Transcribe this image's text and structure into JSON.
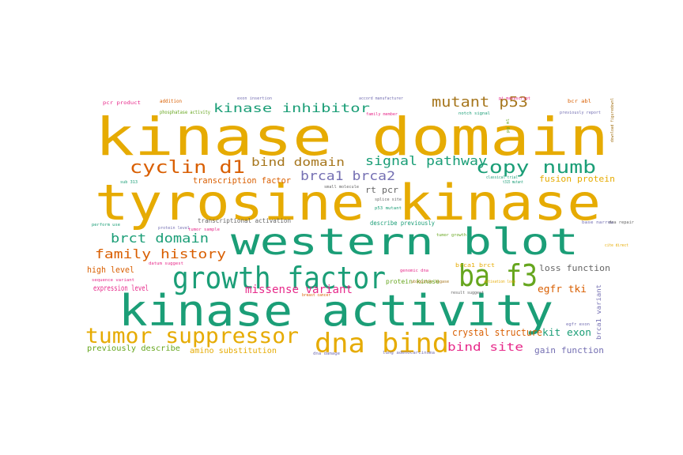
{
  "palette": {
    "orange": "#e6ab02",
    "teal": "#1b9e77",
    "rust": "#d95f02",
    "purple": "#7570b3",
    "pink": "#e7298a",
    "green": "#66a61e",
    "brown": "#a6761d",
    "gray": "#666666"
  },
  "words": [
    {
      "text": "kinase domain",
      "color": "orange"
    },
    {
      "text": "tyrosine kinase",
      "color": "orange"
    },
    {
      "text": "western blot",
      "color": "teal"
    },
    {
      "text": "kinase activity",
      "color": "teal"
    },
    {
      "text": "growth factor",
      "color": "teal"
    },
    {
      "text": "ba f3",
      "color": "green"
    },
    {
      "text": "dna bind",
      "color": "orange"
    },
    {
      "text": "tumor suppressor",
      "color": "orange"
    },
    {
      "text": "cyclin d1",
      "color": "rust"
    },
    {
      "text": "copy numb",
      "color": "teal"
    },
    {
      "text": "kinase inhibitor",
      "color": "teal"
    },
    {
      "text": "mutant p53",
      "color": "brown"
    },
    {
      "text": "signal pathway",
      "color": "teal"
    },
    {
      "text": "bind domain",
      "color": "brown"
    },
    {
      "text": "brca1 brca2",
      "color": "purple"
    },
    {
      "text": "brct domain",
      "color": "teal"
    },
    {
      "text": "family history",
      "color": "rust"
    },
    {
      "text": "missense variant",
      "color": "pink"
    },
    {
      "text": "bind site",
      "color": "pink"
    },
    {
      "text": "crystal structure",
      "color": "rust"
    },
    {
      "text": "transcription factor",
      "color": "rust"
    },
    {
      "text": "fusion protein",
      "color": "orange"
    },
    {
      "text": "rt pcr",
      "color": "gray"
    },
    {
      "text": "loss function",
      "color": "gray"
    },
    {
      "text": "egfr tki",
      "color": "rust"
    },
    {
      "text": "kit exon",
      "color": "teal"
    },
    {
      "text": "gain function",
      "color": "purple"
    },
    {
      "text": "high level",
      "color": "rust"
    },
    {
      "text": "expression level",
      "color": "pink"
    },
    {
      "text": "previously describe",
      "color": "green"
    },
    {
      "text": "amino substitution",
      "color": "orange"
    },
    {
      "text": "transcriptional activation",
      "color": "gray"
    },
    {
      "text": "describe previously",
      "color": "teal"
    },
    {
      "text": "protein kinase",
      "color": "green"
    },
    {
      "text": "brca1 brct",
      "color": "orange"
    },
    {
      "text": "brca1 variant",
      "color": "purple"
    },
    {
      "text": "pcr product",
      "color": "pink"
    },
    {
      "text": "addition",
      "color": "rust"
    },
    {
      "text": "phosphatase activity",
      "color": "green"
    },
    {
      "text": "exon insertion",
      "color": "purple"
    },
    {
      "text": "accord manufacturer",
      "color": "purple"
    },
    {
      "text": "pi manuscript",
      "color": "pink"
    },
    {
      "text": "bcr abl",
      "color": "rust"
    },
    {
      "text": "previously report",
      "color": "purple"
    },
    {
      "text": "notch signal",
      "color": "teal"
    },
    {
      "text": "family member",
      "color": "pink"
    },
    {
      "text": "classical trial",
      "color": "teal"
    },
    {
      "text": "small molecule",
      "color": "gray"
    },
    {
      "text": "splice site",
      "color": "gray"
    },
    {
      "text": "p53 mutant",
      "color": "teal"
    },
    {
      "text": "perform use",
      "color": "teal"
    },
    {
      "text": "sequence variant",
      "color": "pink"
    },
    {
      "text": "protein level",
      "color": "purple"
    },
    {
      "text": "tumor sample",
      "color": "pink"
    },
    {
      "text": "datum suggest",
      "color": "pink"
    },
    {
      "text": "tumor growth",
      "color": "green"
    },
    {
      "text": "base narrow",
      "color": "purple"
    },
    {
      "text": "dna repair",
      "color": "gray"
    },
    {
      "text": "cite direct",
      "color": "orange"
    },
    {
      "text": "result suggest",
      "color": "gray"
    },
    {
      "text": "activation loop",
      "color": "orange"
    },
    {
      "text": "ubiquitin ligase",
      "color": "brown"
    },
    {
      "text": "genomic dna",
      "color": "pink"
    },
    {
      "text": "dna damage",
      "color": "purple"
    },
    {
      "text": "lung adenocarcinoma",
      "color": "purple"
    },
    {
      "text": "breast cancer",
      "color": "rust"
    },
    {
      "text": "egfr exon",
      "color": "purple"
    },
    {
      "text": "t315 mutant",
      "color": "teal"
    },
    {
      "text": "download figuredownl",
      "color": "brown"
    },
    {
      "text": "pg ml",
      "color": "green"
    },
    {
      "text": "sub 313",
      "color": "teal"
    }
  ]
}
